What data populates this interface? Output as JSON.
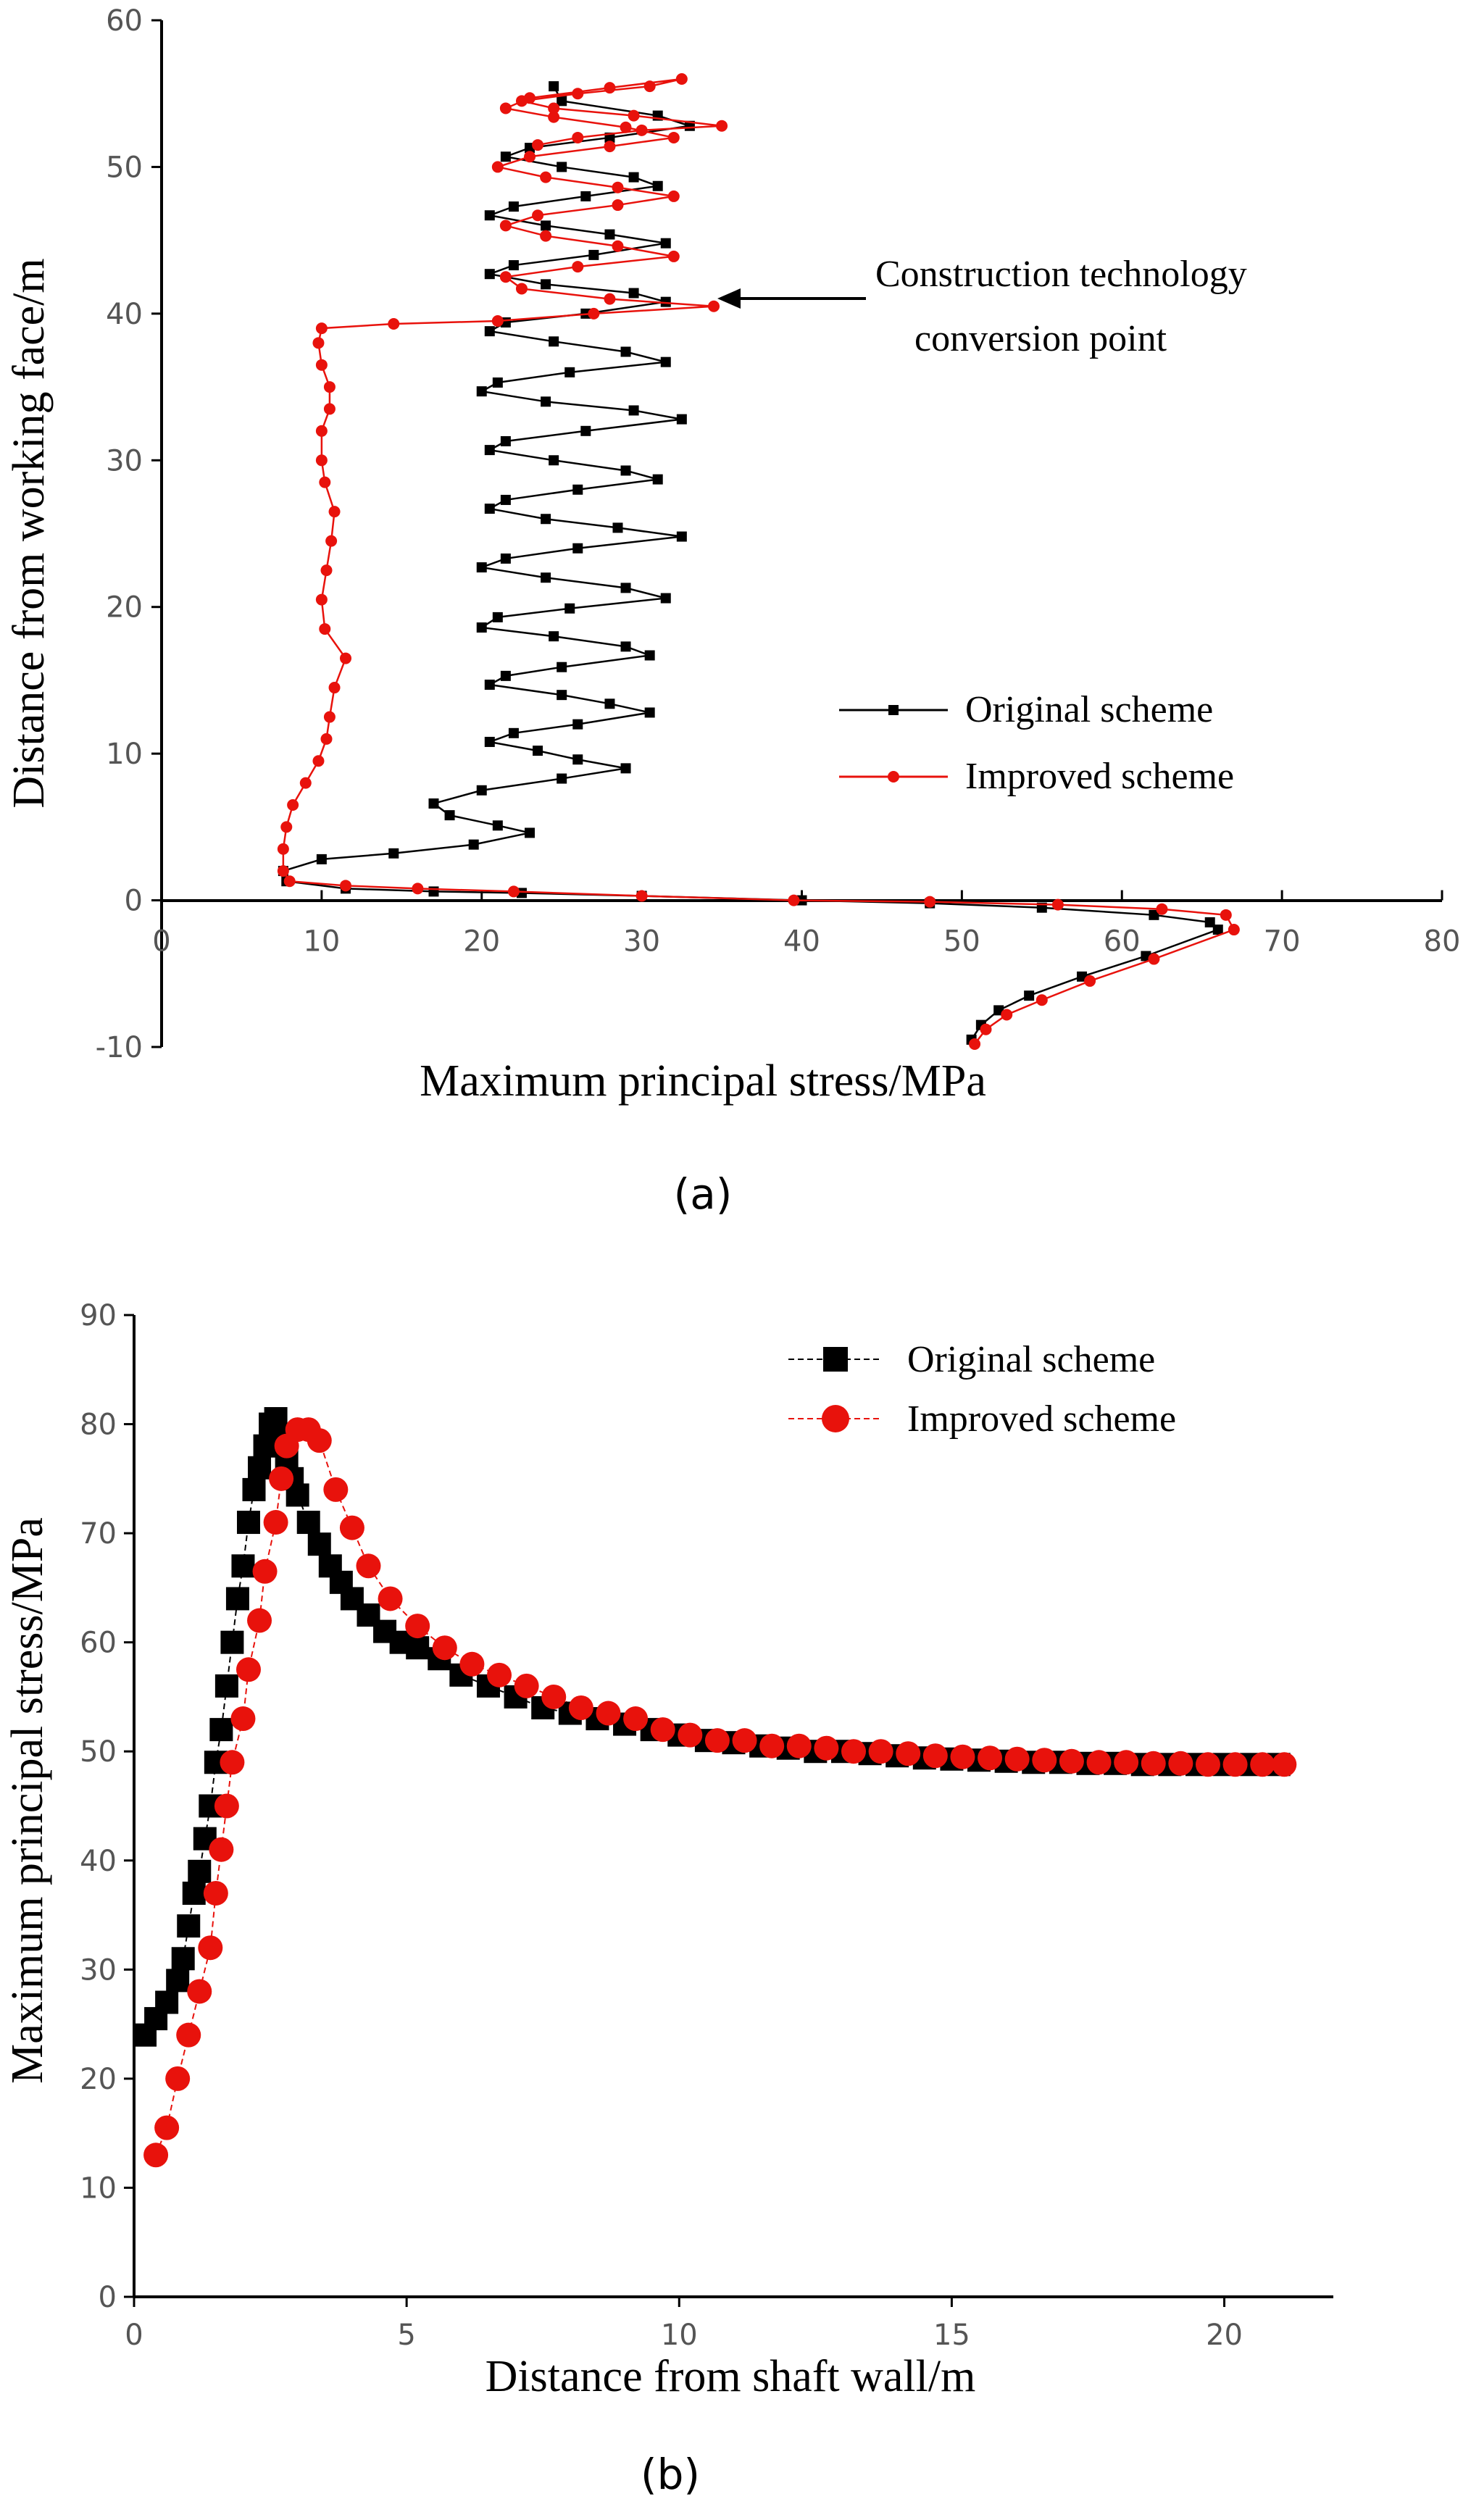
{
  "colors": {
    "original": "#000000",
    "improved": "#e8120c"
  },
  "chart_data": [
    {
      "panel_label": "(a)",
      "type": "line",
      "xlabel": "Maximum principal stress/MPa",
      "ylabel": "Distance from working face/m",
      "xlim": [
        0,
        80
      ],
      "ylim": [
        -10,
        60
      ],
      "xticks": [
        "0",
        "10",
        "20",
        "30",
        "40",
        "50",
        "60",
        "70",
        "80"
      ],
      "yticks": [
        "-10",
        "0",
        "10",
        "20",
        "30",
        "40",
        "50",
        "60"
      ],
      "annotation": [
        "Construction technology",
        "conversion point"
      ],
      "annotation_target": [
        34.5,
        40.5
      ],
      "series": [
        {
          "name": "Original scheme",
          "x": [
            50.6,
            51.2,
            52.3,
            54.2,
            57.5,
            61.5,
            66.0,
            65.5,
            62.0,
            55.0,
            48.0,
            40.0,
            30.0,
            22.5,
            17.0,
            11.5,
            7.8,
            7.6,
            10.0,
            14.5,
            19.5,
            23.0,
            21.0,
            18.0,
            17.0,
            20.0,
            25.0,
            29.0,
            26.0,
            23.5,
            20.5,
            22.0,
            26.0,
            30.5,
            28.0,
            25.0,
            20.5,
            21.5,
            25.0,
            30.5,
            29.0,
            24.5,
            20.0,
            21.0,
            25.5,
            31.5,
            29.0,
            24.0,
            20.0,
            21.5,
            26.0,
            32.5,
            28.5,
            24.0,
            20.5,
            21.5,
            26.0,
            31.0,
            29.0,
            24.5,
            20.5,
            21.5,
            26.5,
            32.5,
            29.5,
            24.0,
            20.0,
            21.0,
            25.5,
            31.5,
            29.0,
            24.5,
            20.5,
            21.5,
            26.5,
            31.5,
            29.5,
            24.0,
            20.5,
            22.0,
            27.0,
            31.5,
            28.0,
            24.0,
            20.5,
            22.0,
            26.5,
            31.0,
            29.5,
            25.0,
            21.5,
            23.0,
            28.0,
            33.0,
            31.0,
            25.0,
            24.5
          ],
          "y": [
            -9.5,
            -8.5,
            -7.5,
            -6.5,
            -5.2,
            -3.8,
            -2.0,
            -1.5,
            -1.0,
            -0.5,
            -0.2,
            0.0,
            0.3,
            0.5,
            0.6,
            0.8,
            1.3,
            2.0,
            2.8,
            3.2,
            3.8,
            4.6,
            5.1,
            5.8,
            6.6,
            7.5,
            8.3,
            9.0,
            9.6,
            10.2,
            10.8,
            11.4,
            12.0,
            12.8,
            13.4,
            14.0,
            14.7,
            15.3,
            15.9,
            16.7,
            17.3,
            18.0,
            18.6,
            19.3,
            19.9,
            20.6,
            21.3,
            22.0,
            22.7,
            23.3,
            24.0,
            24.8,
            25.4,
            26.0,
            26.7,
            27.3,
            28.0,
            28.7,
            29.3,
            30.0,
            30.7,
            31.3,
            32.0,
            32.8,
            33.4,
            34.0,
            34.7,
            35.3,
            36.0,
            36.7,
            37.4,
            38.1,
            38.8,
            39.4,
            40.0,
            40.8,
            41.4,
            42.0,
            42.7,
            43.3,
            44.0,
            44.8,
            45.4,
            46.0,
            46.7,
            47.3,
            48.0,
            48.7,
            49.3,
            50.0,
            50.7,
            51.3,
            52.0,
            52.8,
            53.5,
            54.5,
            55.5
          ]
        },
        {
          "name": "Improved scheme",
          "x": [
            50.8,
            51.5,
            52.8,
            55.0,
            58.0,
            62.0,
            67.0,
            66.5,
            62.5,
            56.0,
            48.0,
            39.5,
            30.0,
            22.0,
            16.0,
            11.5,
            8.0,
            7.6,
            7.6,
            7.8,
            8.2,
            9.0,
            9.8,
            10.3,
            10.5,
            10.8,
            11.5,
            10.2,
            10.0,
            10.3,
            10.6,
            10.8,
            10.2,
            10.0,
            10.0,
            10.5,
            10.5,
            10.0,
            9.8,
            10.0,
            14.5,
            21.0,
            27.0,
            34.5,
            28.0,
            22.5,
            21.5,
            26.0,
            32.0,
            28.5,
            24.0,
            21.5,
            23.5,
            28.5,
            32.0,
            28.5,
            24.0,
            21.0,
            23.0,
            28.0,
            32.0,
            29.0,
            24.5,
            21.5,
            23.0,
            28.0,
            32.5,
            30.5,
            26.0,
            22.5,
            24.5,
            29.5,
            35.0,
            30.0,
            26.0,
            23.5
          ],
          "y": [
            -9.8,
            -8.8,
            -7.8,
            -6.8,
            -5.5,
            -4.0,
            -2.0,
            -1.0,
            -0.6,
            -0.3,
            -0.1,
            0.0,
            0.3,
            0.6,
            0.8,
            1.0,
            1.3,
            2.0,
            3.5,
            5.0,
            6.5,
            8.0,
            9.5,
            11.0,
            12.5,
            14.5,
            16.5,
            18.5,
            20.5,
            22.5,
            24.5,
            26.5,
            28.5,
            30.0,
            32.0,
            33.5,
            35.0,
            36.5,
            38.0,
            39.0,
            39.3,
            39.5,
            40.0,
            40.5,
            41.0,
            41.7,
            42.5,
            43.2,
            43.9,
            44.6,
            45.3,
            46.0,
            46.7,
            47.4,
            48.0,
            48.6,
            49.3,
            50.0,
            50.7,
            51.4,
            52.0,
            52.7,
            53.4,
            54.0,
            54.7,
            55.4,
            56.0,
            55.5,
            55.0,
            54.5,
            54.0,
            53.5,
            52.8,
            52.5,
            52.0,
            51.5
          ]
        }
      ]
    },
    {
      "panel_label": "(b)",
      "type": "scatter",
      "xlabel": "Distance from shaft wall/m",
      "ylabel": "Maximum principal stress/MPa",
      "xlim": [
        0,
        22
      ],
      "ylim": [
        0,
        90
      ],
      "xticks": [
        "0",
        "5",
        "10",
        "15",
        "20"
      ],
      "yticks": [
        "0",
        "10",
        "20",
        "30",
        "40",
        "50",
        "60",
        "70",
        "80",
        "90"
      ],
      "series": [
        {
          "name": "Original scheme",
          "x": [
            0.2,
            0.4,
            0.6,
            0.8,
            0.9,
            1.0,
            1.1,
            1.2,
            1.3,
            1.4,
            1.5,
            1.6,
            1.7,
            1.8,
            1.9,
            2.0,
            2.1,
            2.2,
            2.3,
            2.4,
            2.5,
            2.6,
            2.7,
            2.8,
            2.9,
            3.0,
            3.2,
            3.4,
            3.6,
            3.8,
            4.0,
            4.3,
            4.6,
            4.9,
            5.2,
            5.6,
            6.0,
            6.5,
            7.0,
            7.5,
            8.0,
            8.5,
            9.0,
            9.5,
            10.0,
            10.5,
            11.0,
            11.5,
            12.0,
            12.5,
            13.0,
            13.5,
            14.0,
            14.5,
            15.0,
            15.5,
            16.0,
            16.5,
            17.0,
            17.5,
            18.0,
            18.5,
            19.0,
            19.5,
            20.0,
            20.5,
            21.0
          ],
          "y": [
            24.0,
            25.5,
            27.0,
            29.0,
            31.0,
            34.0,
            37.0,
            39.0,
            42.0,
            45.0,
            49.0,
            52.0,
            56.0,
            60.0,
            64.0,
            67.0,
            71.0,
            74.0,
            76.0,
            78.0,
            80.0,
            80.5,
            79.0,
            77.0,
            75.0,
            73.5,
            71.0,
            69.0,
            67.0,
            65.5,
            64.0,
            62.5,
            61.0,
            60.0,
            59.5,
            58.5,
            57.0,
            56.0,
            55.0,
            54.0,
            53.5,
            53.0,
            52.5,
            52.0,
            51.5,
            51.0,
            50.8,
            50.5,
            50.3,
            50.0,
            50.0,
            49.8,
            49.6,
            49.4,
            49.3,
            49.2,
            49.1,
            49.0,
            49.0,
            48.9,
            48.9,
            48.8,
            48.8,
            48.8,
            48.8,
            48.8,
            48.8
          ]
        },
        {
          "name": "Improved scheme",
          "x": [
            0.4,
            0.6,
            0.8,
            1.0,
            1.2,
            1.4,
            1.5,
            1.6,
            1.7,
            1.8,
            2.0,
            2.1,
            2.3,
            2.4,
            2.6,
            2.7,
            2.8,
            3.0,
            3.2,
            3.4,
            3.7,
            4.0,
            4.3,
            4.7,
            5.2,
            5.7,
            6.2,
            6.7,
            7.2,
            7.7,
            8.2,
            8.7,
            9.2,
            9.7,
            10.2,
            10.7,
            11.2,
            11.7,
            12.2,
            12.7,
            13.2,
            13.7,
            14.2,
            14.7,
            15.2,
            15.7,
            16.2,
            16.7,
            17.2,
            17.7,
            18.2,
            18.7,
            19.2,
            19.7,
            20.2,
            20.7,
            21.1
          ],
          "y": [
            13.0,
            15.5,
            20.0,
            24.0,
            28.0,
            32.0,
            37.0,
            41.0,
            45.0,
            49.0,
            53.0,
            57.5,
            62.0,
            66.5,
            71.0,
            75.0,
            78.0,
            79.5,
            79.5,
            78.5,
            74.0,
            70.5,
            67.0,
            64.0,
            61.5,
            59.5,
            58.0,
            57.0,
            56.0,
            55.0,
            54.0,
            53.5,
            53.0,
            52.0,
            51.5,
            51.0,
            51.0,
            50.5,
            50.5,
            50.3,
            50.0,
            50.0,
            49.8,
            49.6,
            49.5,
            49.4,
            49.3,
            49.2,
            49.1,
            49.0,
            49.0,
            48.9,
            48.9,
            48.8,
            48.8,
            48.8,
            48.8
          ]
        }
      ]
    }
  ]
}
